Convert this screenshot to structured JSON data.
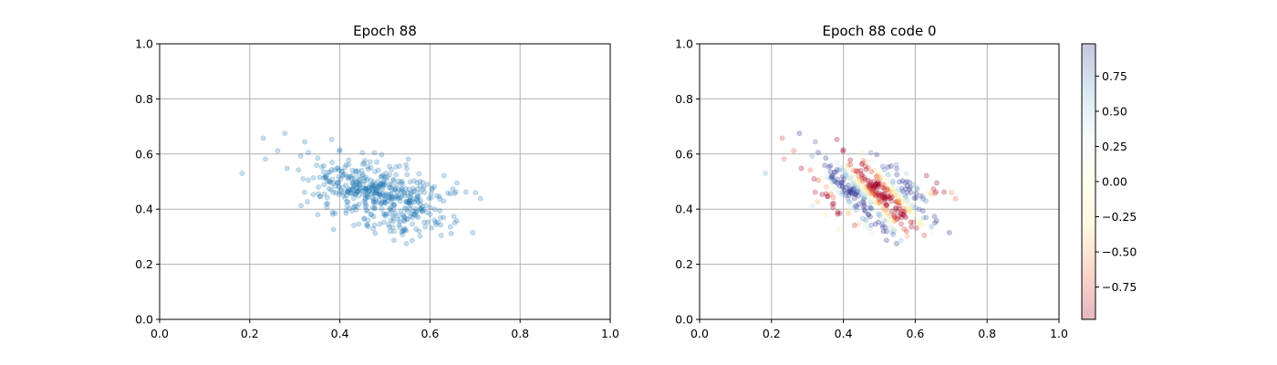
{
  "chart_data": [
    {
      "type": "scatter",
      "title": "Epoch 88",
      "xlabel": "",
      "ylabel": "",
      "xlim": [
        0.0,
        1.0
      ],
      "ylim": [
        0.0,
        1.0
      ],
      "xticks": [
        "0.0",
        "0.2",
        "0.4",
        "0.6",
        "0.8",
        "1.0"
      ],
      "yticks": [
        "0.0",
        "0.2",
        "0.4",
        "0.6",
        "0.8",
        "1.0"
      ],
      "grid": true,
      "point_color": "#1f77b4",
      "point_opacity": 0.25,
      "distribution": {
        "n_points": 500,
        "x_mean": 0.49,
        "y_mean": 0.45,
        "x_std": 0.075,
        "y_std": 0.065,
        "xy_correlation": -0.45
      },
      "sample_points": [
        [
          0.183,
          0.53
        ],
        [
          0.23,
          0.658
        ],
        [
          0.235,
          0.582
        ],
        [
          0.262,
          0.612
        ],
        [
          0.278,
          0.675
        ],
        [
          0.283,
          0.548
        ],
        [
          0.313,
          0.593
        ],
        [
          0.322,
          0.644
        ],
        [
          0.33,
          0.505
        ],
        [
          0.36,
          0.553
        ],
        [
          0.372,
          0.442
        ],
        [
          0.382,
          0.653
        ],
        [
          0.386,
          0.326
        ],
        [
          0.45,
          0.605
        ],
        [
          0.46,
          0.341
        ],
        [
          0.493,
          0.598
        ],
        [
          0.51,
          0.335
        ],
        [
          0.52,
          0.287
        ],
        [
          0.537,
          0.317
        ],
        [
          0.548,
          0.275
        ],
        [
          0.578,
          0.302
        ],
        [
          0.625,
          0.305
        ],
        [
          0.66,
          0.495
        ],
        [
          0.68,
          0.462
        ],
        [
          0.695,
          0.315
        ],
        [
          0.701,
          0.46
        ],
        [
          0.712,
          0.438
        ]
      ]
    },
    {
      "type": "scatter",
      "title": "Epoch 88 code 0",
      "xlabel": "",
      "ylabel": "",
      "xlim": [
        0.0,
        1.0
      ],
      "ylim": [
        0.0,
        1.0
      ],
      "xticks": [
        "0.0",
        "0.2",
        "0.4",
        "0.6",
        "0.8",
        "1.0"
      ],
      "yticks": [
        "0.0",
        "0.2",
        "0.4",
        "0.6",
        "0.8",
        "1.0"
      ],
      "grid": true,
      "point_opacity": 0.28,
      "color_by": "code value (same point positions as left panel)",
      "colormap": {
        "name": "RdYlBu",
        "stops": [
          "#a50026",
          "#f46d43",
          "#fee090",
          "#ffffbf",
          "#e0f3f8",
          "#74add1",
          "#313695"
        ],
        "min": -0.98,
        "max": 0.98
      },
      "colorbar_ticks": [
        "0.75",
        "0.50",
        "0.25",
        "0.00",
        "−0.25",
        "−0.50",
        "−0.75"
      ],
      "colorbar_tick_values": [
        0.75,
        0.5,
        0.25,
        0.0,
        -0.25,
        -0.5,
        -0.75
      ]
    }
  ]
}
